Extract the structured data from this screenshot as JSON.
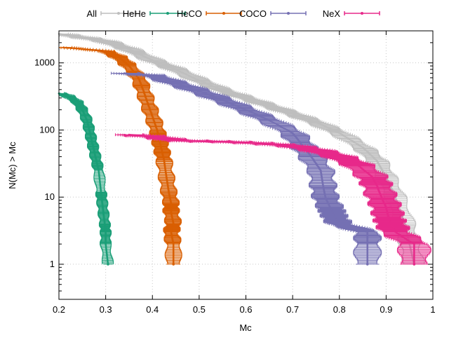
{
  "chart_data": {
    "type": "scatter",
    "title": "",
    "xlabel": "Mc",
    "ylabel": "N(Mc) > Mc",
    "xlim": [
      0.2,
      1.0
    ],
    "ylim": [
      0.3,
      3000
    ],
    "yscale": "log",
    "grid": true,
    "legend_position": "top",
    "x_ticks": [
      0.2,
      0.3,
      0.4,
      0.5,
      0.6,
      0.7,
      0.8,
      0.9,
      1.0
    ],
    "x_tick_labels": [
      "0.2",
      "0.3",
      "0.4",
      "0.5",
      "0.6",
      "0.7",
      "0.8",
      "0.9",
      "1"
    ],
    "y_ticks": [
      1,
      10,
      100,
      1000
    ],
    "y_tick_labels": [
      "1",
      "10",
      "100",
      "1000"
    ],
    "series": [
      {
        "name": "All",
        "color": "#bebebe",
        "x_err": 0.02,
        "points": [
          [
            0.2,
            2700
          ],
          [
            0.25,
            2400
          ],
          [
            0.3,
            2100
          ],
          [
            0.35,
            1600
          ],
          [
            0.4,
            1100
          ],
          [
            0.45,
            800
          ],
          [
            0.5,
            550
          ],
          [
            0.55,
            390
          ],
          [
            0.6,
            300
          ],
          [
            0.65,
            230
          ],
          [
            0.7,
            175
          ],
          [
            0.75,
            130
          ],
          [
            0.8,
            90
          ],
          [
            0.85,
            55
          ],
          [
            0.88,
            35
          ],
          [
            0.9,
            20
          ],
          [
            0.92,
            10
          ],
          [
            0.94,
            4
          ],
          [
            0.95,
            2
          ],
          [
            0.96,
            1
          ]
        ]
      },
      {
        "name": "HeHe",
        "color": "#1a9e77",
        "x_err": 0.01,
        "points": [
          [
            0.2,
            350
          ],
          [
            0.22,
            320
          ],
          [
            0.24,
            260
          ],
          [
            0.25,
            200
          ],
          [
            0.26,
            140
          ],
          [
            0.265,
            100
          ],
          [
            0.27,
            70
          ],
          [
            0.275,
            50
          ],
          [
            0.28,
            35
          ],
          [
            0.285,
            25
          ],
          [
            0.29,
            12
          ],
          [
            0.292,
            9
          ],
          [
            0.295,
            6
          ],
          [
            0.298,
            4
          ],
          [
            0.3,
            3
          ],
          [
            0.3,
            2
          ],
          [
            0.305,
            1
          ]
        ]
      },
      {
        "name": "HeCO",
        "color": "#d95f02",
        "x_err": 0.015,
        "points": [
          [
            0.21,
            1700
          ],
          [
            0.3,
            1500
          ],
          [
            0.33,
            1200
          ],
          [
            0.35,
            900
          ],
          [
            0.37,
            600
          ],
          [
            0.38,
            400
          ],
          [
            0.39,
            250
          ],
          [
            0.4,
            160
          ],
          [
            0.41,
            100
          ],
          [
            0.415,
            70
          ],
          [
            0.42,
            50
          ],
          [
            0.425,
            35
          ],
          [
            0.43,
            20
          ],
          [
            0.435,
            12
          ],
          [
            0.44,
            8
          ],
          [
            0.44,
            6
          ],
          [
            0.445,
            4
          ],
          [
            0.44,
            3
          ],
          [
            0.445,
            2
          ],
          [
            0.445,
            1
          ]
        ]
      },
      {
        "name": "COCO",
        "color": "#7570b3",
        "x_err": 0.025,
        "points": [
          [
            0.34,
            700
          ],
          [
            0.4,
            650
          ],
          [
            0.45,
            500
          ],
          [
            0.5,
            380
          ],
          [
            0.55,
            280
          ],
          [
            0.6,
            200
          ],
          [
            0.65,
            140
          ],
          [
            0.7,
            90
          ],
          [
            0.72,
            60
          ],
          [
            0.74,
            40
          ],
          [
            0.76,
            25
          ],
          [
            0.765,
            15
          ],
          [
            0.77,
            10
          ],
          [
            0.78,
            7
          ],
          [
            0.785,
            6
          ],
          [
            0.79,
            5
          ],
          [
            0.8,
            4
          ],
          [
            0.86,
            3
          ],
          [
            0.86,
            2
          ],
          [
            0.86,
            1
          ]
        ]
      },
      {
        "name": "NeX",
        "color": "#e7298a",
        "x_err": 0.03,
        "points": [
          [
            0.35,
            85
          ],
          [
            0.4,
            80
          ],
          [
            0.45,
            70
          ],
          [
            0.5,
            68
          ],
          [
            0.55,
            67
          ],
          [
            0.6,
            65
          ],
          [
            0.65,
            62
          ],
          [
            0.7,
            58
          ],
          [
            0.75,
            50
          ],
          [
            0.8,
            40
          ],
          [
            0.84,
            30
          ],
          [
            0.87,
            20
          ],
          [
            0.88,
            15
          ],
          [
            0.89,
            10
          ],
          [
            0.9,
            7
          ],
          [
            0.905,
            5
          ],
          [
            0.91,
            4
          ],
          [
            0.92,
            3
          ],
          [
            0.96,
            2
          ],
          [
            0.96,
            1
          ]
        ]
      }
    ]
  }
}
